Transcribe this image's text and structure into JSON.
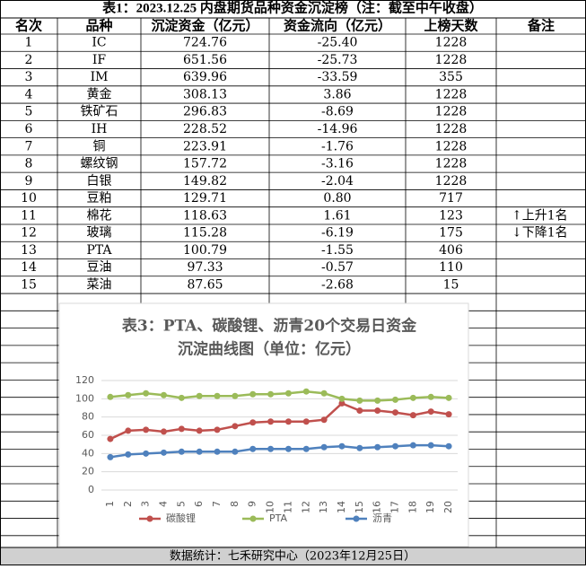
{
  "table": {
    "title": "表1：2023.12.25 内盘期货品种资金沉淀榜（注：截至中午收盘）",
    "header": [
      "名次",
      "品种",
      "沉淀资金（亿元）",
      "资金流向（亿元）",
      "上榜天数",
      "备注"
    ],
    "rows": [
      [
        "1",
        "IC",
        "724.76",
        "-25.40",
        "1228"
      ],
      [
        "2",
        "IF",
        "651.56",
        "-25.73",
        "1228"
      ],
      [
        "3",
        "IM",
        "639.96",
        "-33.59",
        "355"
      ],
      [
        "4",
        "黄金",
        "308.13",
        "3.86",
        "1228"
      ],
      [
        "5",
        "铁矿石",
        "296.83",
        "-8.69",
        "1228"
      ],
      [
        "6",
        "IH",
        "228.52",
        "-14.96",
        "1228"
      ],
      [
        "7",
        "铜",
        "223.91",
        "-1.76",
        "1228"
      ],
      [
        "8",
        "螺纹钢",
        "157.72",
        "-3.16",
        "1228"
      ],
      [
        "9",
        "白银",
        "149.82",
        "-2.04",
        "1228"
      ],
      [
        "10",
        "豆粕",
        "129.71",
        "0.80",
        "717"
      ],
      [
        "11",
        "棉花",
        "118.63",
        "1.61",
        "123",
        "↑上升1名"
      ],
      [
        "12",
        "玻璃",
        "115.28",
        "-6.19",
        "175",
        "↓下降1名"
      ],
      [
        "13",
        "PTA",
        "100.79",
        "-1.55",
        "406"
      ],
      [
        "14",
        "豆油",
        "97.33",
        "-0.57",
        "110"
      ],
      [
        "15",
        "菜油",
        "87.65",
        "-2.68",
        "15"
      ]
    ],
    "footer": "数据统计：七禾研究中心（2023年12月25日）"
  },
  "chart_data": {
    "type": "line",
    "title": [
      "表3：PTA、碳酸锂、沥青20个交易日资金",
      "沉淀曲线图（单位：亿元）"
    ],
    "categories": [
      "1",
      "2",
      "3",
      "4",
      "5",
      "6",
      "7",
      "8",
      "9",
      "10",
      "11",
      "12",
      "13",
      "14",
      "15",
      "16",
      "17",
      "18",
      "19",
      "20"
    ],
    "series": [
      {
        "name": "碳酸锂",
        "color": "#c0504d",
        "values": [
          56,
          65,
          66,
          64,
          67,
          65,
          66,
          70,
          74,
          75,
          75,
          75,
          77,
          95,
          87,
          87,
          85,
          82,
          86,
          83
        ]
      },
      {
        "name": "PTA",
        "color": "#9bbb59",
        "values": [
          102,
          104,
          106,
          104,
          101,
          103,
          103,
          103,
          105,
          105,
          106,
          108,
          106,
          100,
          98,
          98,
          99,
          101,
          102,
          101
        ]
      },
      {
        "name": "沥青",
        "color": "#4f81bd",
        "values": [
          36,
          39,
          40,
          41,
          42,
          42,
          42,
          42,
          45,
          45,
          45,
          45,
          47,
          48,
          46,
          47,
          48,
          49,
          49,
          48
        ]
      }
    ],
    "ylim": [
      0,
      120
    ],
    "yticks": [
      0,
      20,
      40,
      60,
      80,
      100,
      120
    ],
    "grid": true,
    "legend": "bottom"
  }
}
